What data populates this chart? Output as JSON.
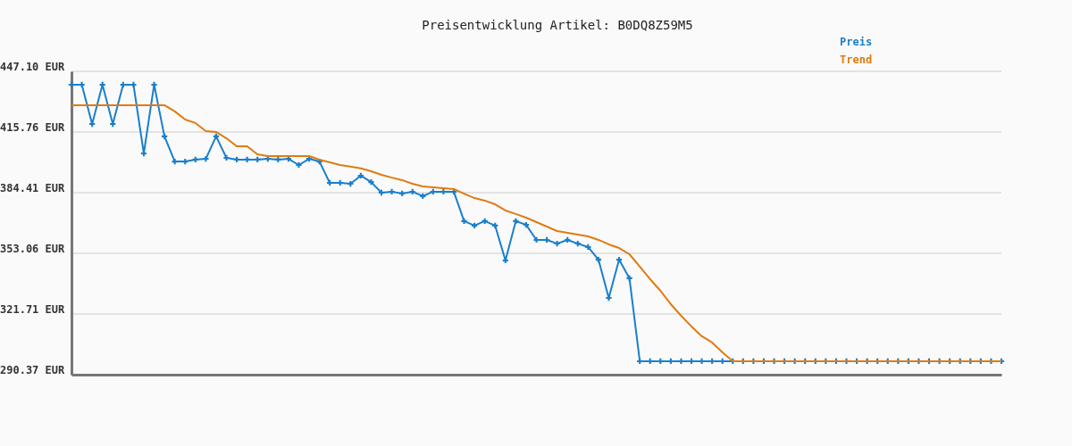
{
  "chart_data": {
    "type": "line",
    "title": "Preisentwicklung Artikel: B0DQ8Z59M5",
    "categories": [
      null,
      null,
      null,
      null,
      null,
      null,
      null,
      null,
      null,
      null,
      null,
      null,
      null,
      null,
      null,
      null,
      null,
      null,
      null,
      null,
      null,
      null,
      null,
      null,
      null,
      null,
      null,
      null,
      null,
      null,
      null,
      null,
      null,
      null,
      null,
      null,
      null,
      null,
      null,
      null,
      null,
      null,
      null,
      null,
      null,
      null,
      null,
      null,
      null,
      null,
      null,
      null,
      null,
      null,
      null,
      null,
      null,
      null,
      null,
      null,
      null,
      null,
      null,
      null,
      null,
      null,
      null,
      null,
      null,
      null,
      null,
      null,
      null,
      null,
      null,
      null,
      null,
      null,
      null,
      null,
      null,
      null,
      null,
      null,
      null,
      null,
      null,
      null,
      null,
      null,
      null
    ],
    "series": [
      {
        "name": "Preis",
        "color": "#1a7fcc",
        "marker": "cross",
        "values": [
          440.2,
          440.2,
          419.9,
          440.2,
          419.9,
          440.2,
          440.2,
          404.7,
          440.2,
          413.5,
          400.5,
          400.5,
          401.5,
          401.9,
          413.5,
          402.4,
          401.5,
          401.5,
          401.5,
          401.9,
          401.5,
          401.9,
          398.7,
          401.9,
          400.5,
          389.5,
          389.5,
          389.0,
          393.2,
          389.9,
          384.4,
          384.9,
          384.0,
          384.9,
          382.6,
          384.9,
          384.9,
          384.9,
          369.7,
          367.4,
          369.7,
          367.4,
          349.4,
          369.7,
          367.8,
          360.0,
          360.0,
          358.1,
          360.0,
          358.1,
          356.3,
          349.8,
          330.0,
          349.8,
          340.2,
          297.3,
          297.3,
          297.3,
          297.3,
          297.3,
          297.3,
          297.3,
          297.3,
          297.3,
          297.3,
          297.3,
          297.3,
          297.3,
          297.3,
          297.3,
          297.3,
          297.3,
          297.3,
          297.3,
          297.3,
          297.3,
          297.3,
          297.3,
          297.3,
          297.3,
          297.3,
          297.3,
          297.3,
          297.3,
          297.3,
          297.3,
          297.3,
          297.3,
          297.3,
          297.3,
          297.3
        ]
      },
      {
        "name": "Trend",
        "color": "#e07b10",
        "marker": "none",
        "values": [
          429.6,
          429.6,
          429.6,
          429.6,
          429.6,
          429.6,
          429.6,
          429.6,
          429.6,
          429.6,
          426.4,
          422.2,
          420.4,
          416.2,
          415.8,
          412.5,
          408.4,
          408.4,
          404.2,
          403.3,
          403.3,
          403.3,
          403.3,
          403.3,
          401.5,
          400.1,
          398.7,
          397.9,
          397.0,
          395.5,
          393.6,
          392.2,
          390.9,
          389.0,
          387.6,
          387.2,
          386.7,
          386.3,
          383.9,
          381.6,
          380.3,
          378.4,
          375.2,
          373.4,
          371.5,
          369.2,
          366.9,
          364.6,
          363.7,
          362.7,
          361.8,
          360.0,
          357.7,
          355.8,
          352.6,
          346.2,
          339.7,
          333.7,
          326.8,
          320.8,
          315.3,
          310.2,
          307.0,
          301.9,
          297.3,
          297.3,
          297.3,
          297.3,
          297.3,
          297.3,
          297.3,
          297.3,
          297.3,
          297.3,
          297.3,
          297.3,
          297.3,
          297.3,
          297.3,
          297.3,
          297.3,
          297.3,
          297.3,
          297.3,
          297.3,
          297.3,
          297.3,
          297.3,
          297.3,
          297.3,
          297.3
        ]
      }
    ],
    "ylim": [
      290.37,
      447.1
    ],
    "yticks": [
      {
        "value": 290.37,
        "label": "290.37 EUR"
      },
      {
        "value": 321.71,
        "label": "321.71 EUR"
      },
      {
        "value": 353.06,
        "label": "353.06 EUR"
      },
      {
        "value": 384.41,
        "label": "384.41 EUR"
      },
      {
        "value": 415.76,
        "label": "415.76 EUR"
      },
      {
        "value": 447.1,
        "label": "447.10 EUR"
      }
    ],
    "grid": "y",
    "legend": "top right",
    "line_style": "solid",
    "tick_labels": "y"
  }
}
